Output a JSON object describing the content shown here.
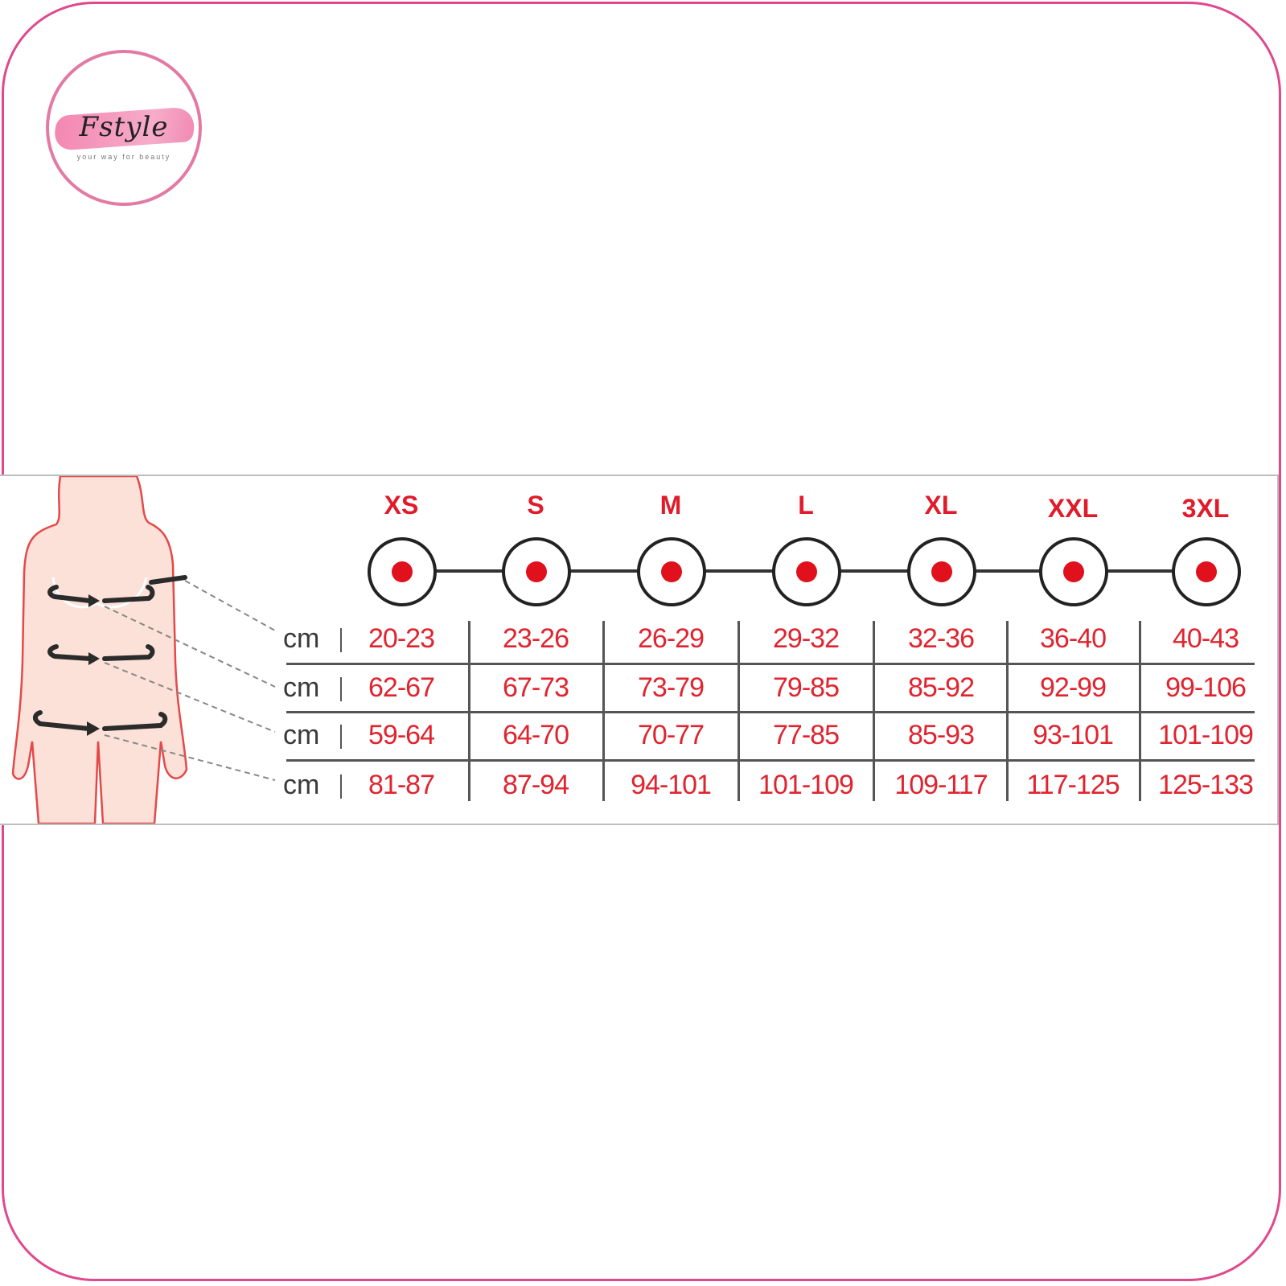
{
  "brand": {
    "name": "Fstyle",
    "tagline": "your way for beauty",
    "color": "#e0488e"
  },
  "size_chart": {
    "unit": "cm",
    "sizes": [
      "XS",
      "S",
      "M",
      "L",
      "XL",
      "XXL",
      "3XL"
    ],
    "rows": [
      [
        "20-23",
        "23-26",
        "26-29",
        "29-32",
        "32-36",
        "36-40",
        "40-43"
      ],
      [
        "62-67",
        "67-73",
        "73-79",
        "79-85",
        "85-92",
        "92-99",
        "99-106"
      ],
      [
        "59-64",
        "64-70",
        "70-77",
        "77-85",
        "85-93",
        "93-101",
        "101-109"
      ],
      [
        "81-87",
        "87-94",
        "94-101",
        "101-109",
        "109-117",
        "117-125",
        "125-133"
      ]
    ],
    "accent_color": "#e0101c"
  }
}
